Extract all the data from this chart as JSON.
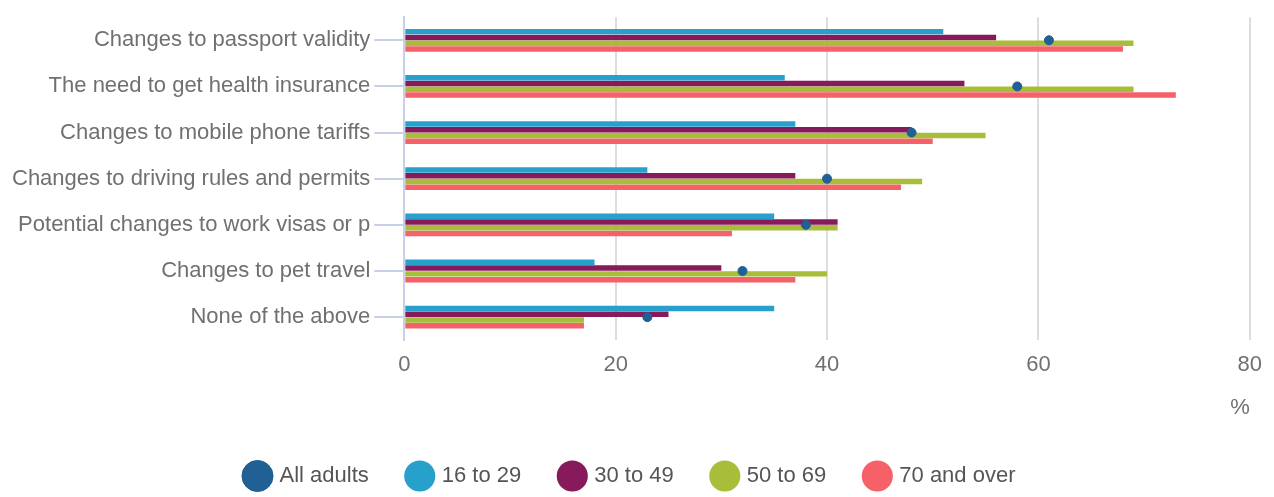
{
  "chart_data": {
    "type": "bar",
    "orientation": "horizontal",
    "categories": [
      "Changes to passport validity",
      "The need to get health insurance",
      "Changes to mobile phone tariffs",
      "Changes to driving rules and permits",
      "Potential changes to work visas or p",
      "Changes to pet travel",
      "None of the above"
    ],
    "series": [
      {
        "name": "All adults",
        "type": "scatter",
        "color": "#206095",
        "values": [
          61,
          58,
          48,
          40,
          38,
          32,
          23
        ]
      },
      {
        "name": "16 to 29",
        "color": "#27a0cc",
        "values": [
          51,
          36,
          37,
          23,
          35,
          18,
          35
        ]
      },
      {
        "name": "30 to 49",
        "color": "#871a5b",
        "values": [
          56,
          53,
          48,
          37,
          41,
          30,
          25
        ]
      },
      {
        "name": "50 to 69",
        "color": "#a8bd3a",
        "values": [
          69,
          69,
          55,
          49,
          41,
          40,
          17
        ]
      },
      {
        "name": "70 and over",
        "color": "#f66068",
        "values": [
          68,
          73,
          50,
          47,
          31,
          37,
          17
        ]
      }
    ],
    "xlim": [
      0,
      80
    ],
    "xticks": [
      0,
      20,
      40,
      60,
      80
    ],
    "xlabel": "%",
    "grid": "x",
    "legend": "bottom",
    "marker": "circle"
  }
}
